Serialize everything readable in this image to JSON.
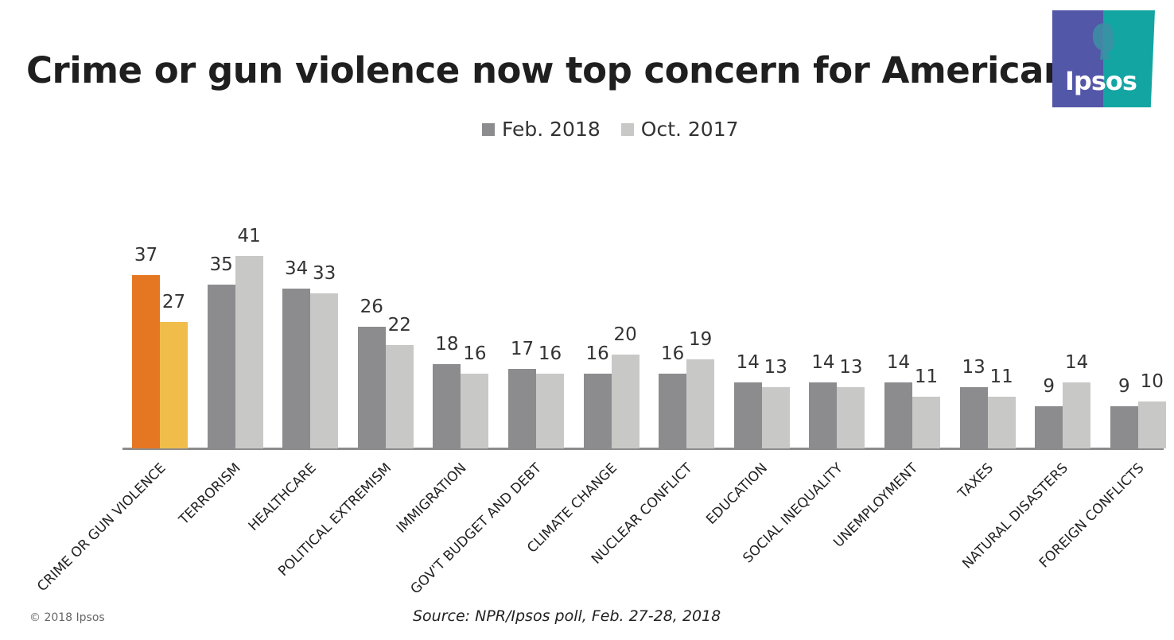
{
  "title": "Crime or gun violence now top concern for Americans",
  "logo": {
    "text": "Ipsos",
    "left_color": "#5357a8",
    "right_color": "#12a5a2"
  },
  "legend": [
    {
      "label": "Feb. 2018",
      "color": "#8c8c8e"
    },
    {
      "label": "Oct. 2017",
      "color": "#c8c8c7"
    }
  ],
  "highlight_colors": {
    "feb": "#e67722",
    "oct": "#f0bd4b"
  },
  "footer": {
    "copyright": "© 2018 Ipsos",
    "source": "Source: NPR/Ipsos poll, Feb. 27-28, 2018"
  },
  "chart_data": {
    "type": "bar",
    "title": "Crime or gun violence now top concern for Americans",
    "xlabel": "",
    "ylabel": "",
    "grid": false,
    "legend_position": "top",
    "categories": [
      "CRIME OR GUN VIOLENCE",
      "TERRORISM",
      "HEALTHCARE",
      "POLITICAL EXTREMISM",
      "IMMIGRATION",
      "GOV'T BUDGET AND DEBT",
      "CLIMATE CHANGE",
      "NUCLEAR CONFLICT",
      "EDUCATION",
      "SOCIAL INEQUALITY",
      "UNEMPLOYMENT",
      "TAXES",
      "NATURAL DISASTERS",
      "FOREIGN CONFLICTS"
    ],
    "series": [
      {
        "name": "Feb. 2018",
        "values": [
          37,
          35,
          34,
          26,
          18,
          17,
          16,
          16,
          14,
          14,
          14,
          13,
          9,
          9
        ]
      },
      {
        "name": "Oct. 2017",
        "values": [
          27,
          41,
          33,
          22,
          16,
          16,
          20,
          19,
          13,
          13,
          11,
          11,
          14,
          10
        ]
      }
    ],
    "ylim": [
      0,
      45
    ],
    "annotations": [
      "First category highlighted in orange/yellow"
    ],
    "source": "Source: NPR/Ipsos poll, Feb. 27-28, 2018"
  }
}
